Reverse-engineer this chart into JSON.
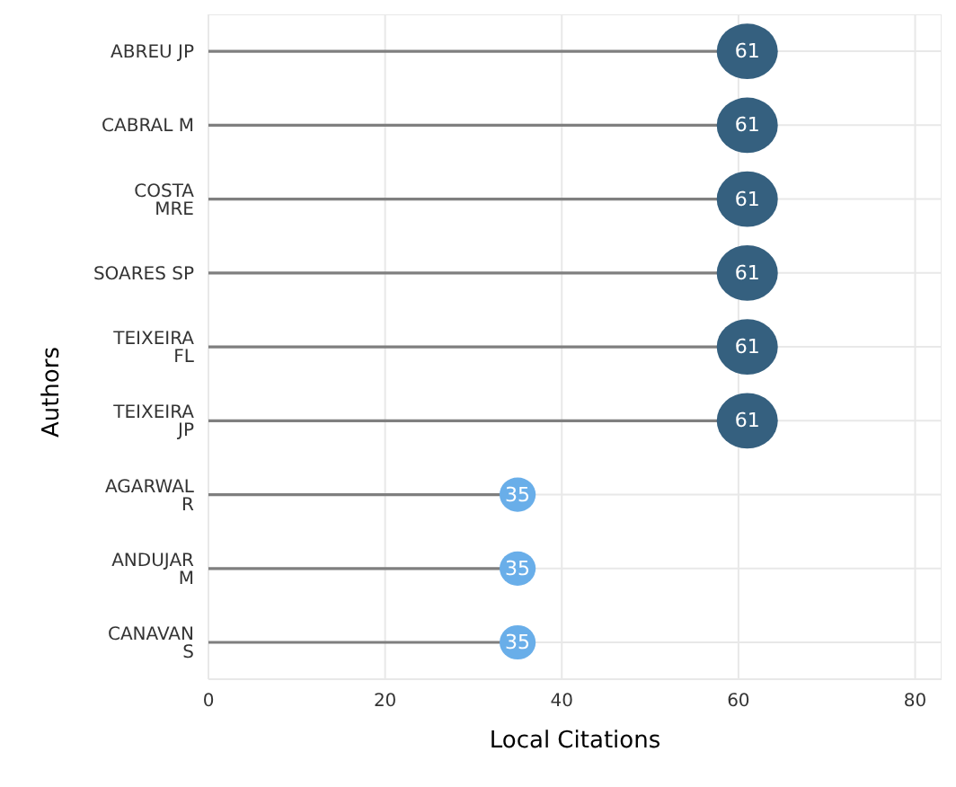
{
  "chart_data": {
    "type": "lollipop",
    "orientation": "horizontal",
    "xlabel": "Local Citations",
    "ylabel": "Authors",
    "categories": [
      "ABREU JP",
      "CABRAL M",
      "COSTA MRE",
      "SOARES SP",
      "TEIXEIRA FL",
      "TEIXEIRA JP",
      "AGARWAL R",
      "ANDUJAR M",
      "CANAVAN S"
    ],
    "values": [
      61,
      61,
      61,
      61,
      61,
      61,
      35,
      35,
      35
    ],
    "sizes": [
      1,
      1,
      1,
      1,
      1,
      1,
      0.35,
      0.35,
      0.35
    ],
    "colors": [
      "#35607f",
      "#35607f",
      "#35607f",
      "#35607f",
      "#35607f",
      "#35607f",
      "#69aee9",
      "#69aee9",
      "#69aee9"
    ],
    "xlim": [
      0,
      83
    ],
    "xticks": [
      0,
      20,
      40,
      60,
      80
    ],
    "grid": true,
    "data_labels": true
  }
}
